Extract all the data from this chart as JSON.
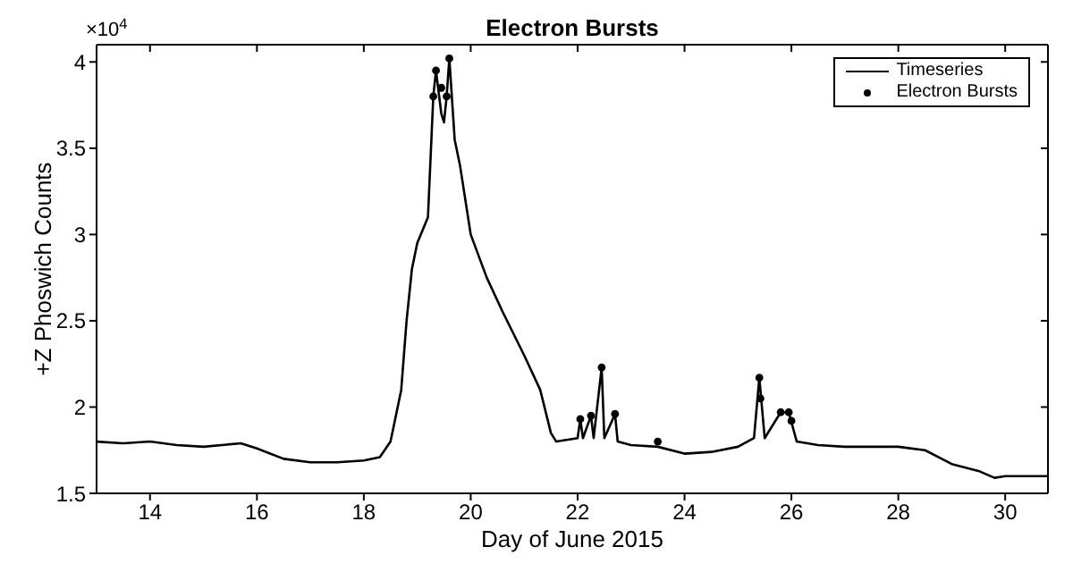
{
  "chart_data": {
    "type": "line",
    "title": "Electron Bursts",
    "xlabel": "Day of June 2015",
    "ylabel": "+Z Phoswich Counts",
    "annotations": [
      "×10$^{4}$"
    ],
    "xlim": [
      13,
      30.8
    ],
    "xticks": [
      14,
      16,
      18,
      20,
      22,
      24,
      26,
      28,
      30
    ],
    "ylim": [
      1.5,
      4.1
    ],
    "yticks": [
      1.5,
      2,
      2.5,
      3,
      3.5,
      4
    ],
    "grid": false,
    "legend": "top right",
    "series": [
      {
        "name": "Timeseries",
        "type": "line",
        "color": "#000000",
        "marker": "none",
        "x": [
          13,
          13.5,
          14,
          14.5,
          15,
          15.7,
          16,
          16.5,
          17,
          17.5,
          18,
          18.3,
          18.5,
          18.7,
          18.8,
          18.9,
          19,
          19.2,
          19.3,
          19.35,
          19.45,
          19.5,
          19.55,
          19.6,
          19.7,
          19.8,
          20,
          20.3,
          20.6,
          21,
          21.3,
          21.5,
          21.6,
          22,
          22.05,
          22.1,
          22.25,
          22.3,
          22.45,
          22.5,
          22.7,
          22.75,
          23,
          23.5,
          24,
          24.5,
          25,
          25.3,
          25.4,
          25.5,
          25.8,
          25.95,
          26.1,
          26.5,
          27,
          27.5,
          28,
          28.5,
          29,
          29.5,
          29.8,
          30,
          30.8
        ],
        "values": [
          1.8,
          1.79,
          1.8,
          1.78,
          1.77,
          1.79,
          1.76,
          1.7,
          1.68,
          1.68,
          1.69,
          1.71,
          1.8,
          2.1,
          2.5,
          2.8,
          2.95,
          3.1,
          3.8,
          3.95,
          3.7,
          3.65,
          3.8,
          4.02,
          3.55,
          3.4,
          3.0,
          2.75,
          2.55,
          2.3,
          2.1,
          1.85,
          1.8,
          1.82,
          1.93,
          1.82,
          1.95,
          1.82,
          2.23,
          1.82,
          1.96,
          1.8,
          1.78,
          1.77,
          1.73,
          1.74,
          1.77,
          1.82,
          2.17,
          1.82,
          1.97,
          1.97,
          1.8,
          1.78,
          1.77,
          1.77,
          1.77,
          1.75,
          1.67,
          1.63,
          1.59,
          1.6,
          1.6
        ]
      },
      {
        "name": "Electron Bursts",
        "type": "scatter",
        "color": "#000000",
        "marker": "circle",
        "x": [
          19.3,
          19.35,
          19.45,
          19.55,
          19.6,
          22.05,
          22.25,
          22.45,
          22.7,
          23.5,
          25.4,
          25.42,
          25.8,
          25.95,
          26.0
        ],
        "values": [
          3.8,
          3.95,
          3.85,
          3.8,
          4.02,
          1.93,
          1.95,
          2.23,
          1.96,
          1.8,
          2.17,
          2.05,
          1.97,
          1.97,
          1.92
        ]
      }
    ]
  }
}
